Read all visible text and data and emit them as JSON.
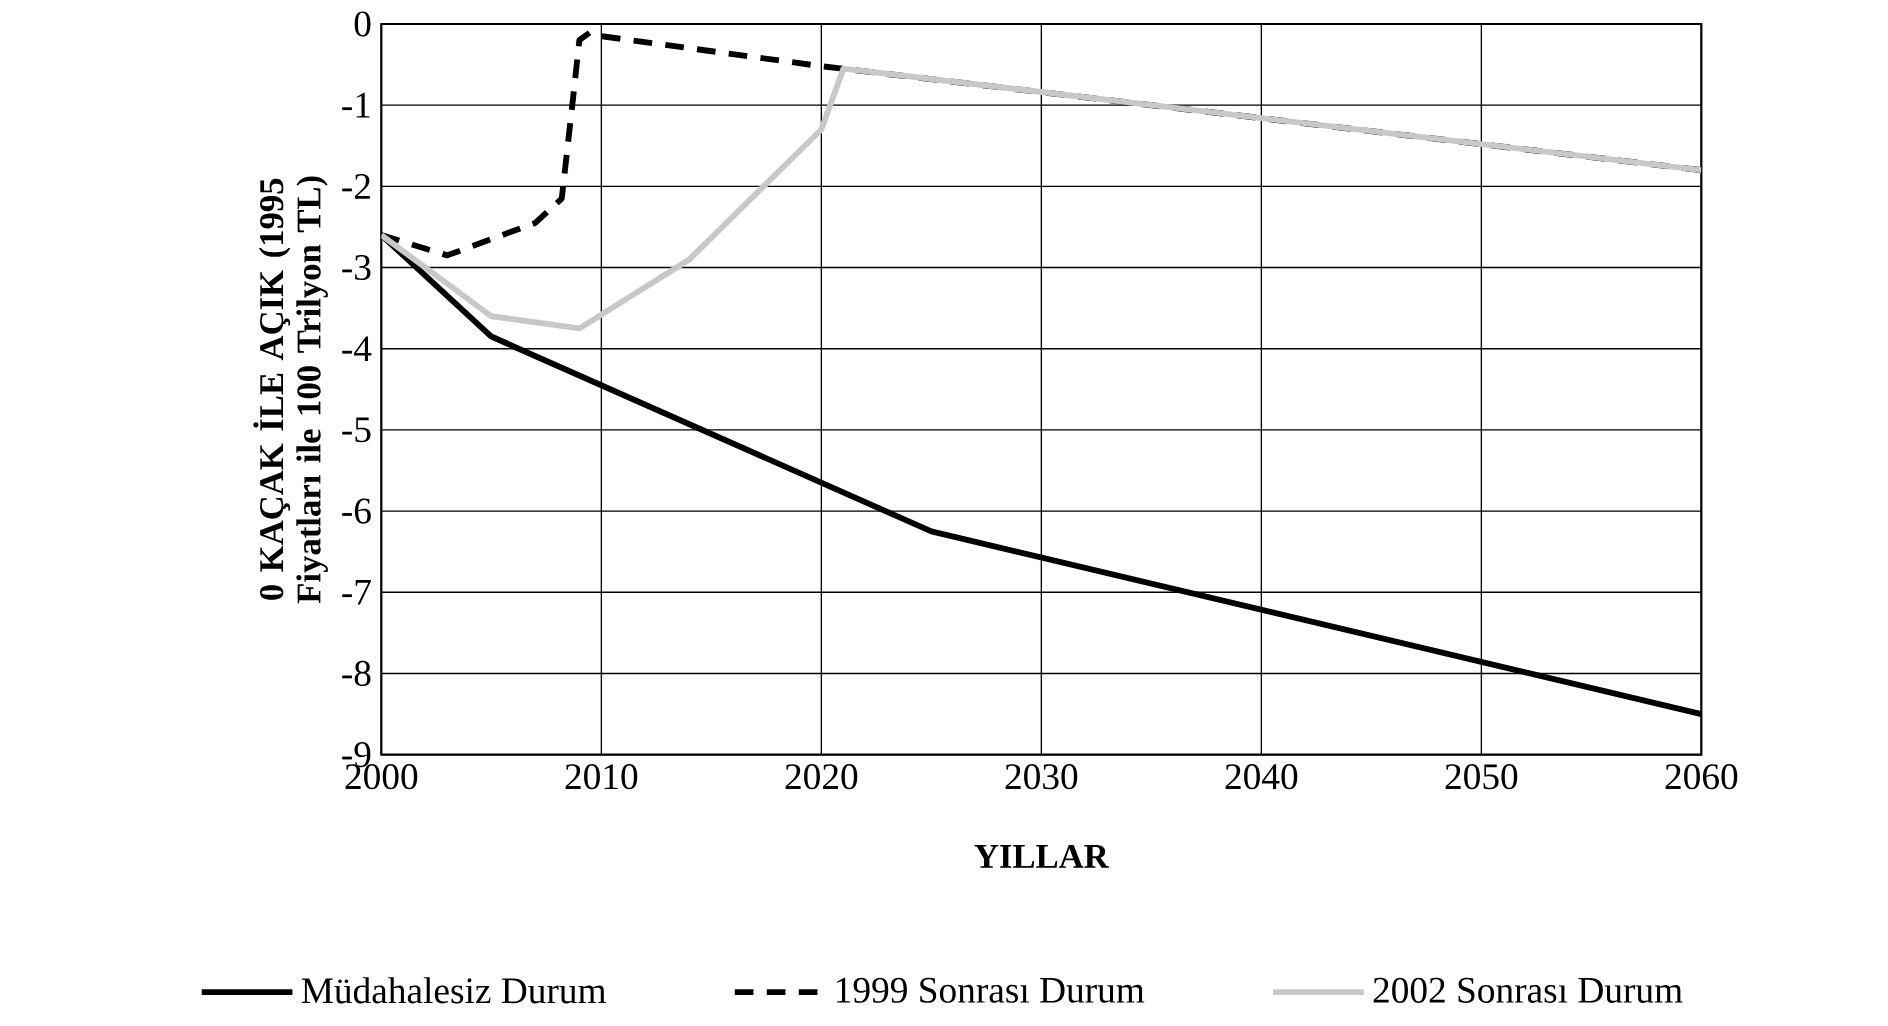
{
  "chart_data": {
    "type": "line",
    "xlabel": "YILLAR",
    "ylabel": "0 KAÇAK İLE AÇIK (1995 Fiyatları ile 100 Trilyon TL)",
    "xlim": [
      2000,
      2060
    ],
    "ylim": [
      -9,
      0
    ],
    "xticks": [
      2000,
      2010,
      2020,
      2030,
      2040,
      2050,
      2060
    ],
    "yticks": [
      0,
      -1,
      -2,
      -3,
      -4,
      -5,
      -6,
      -7,
      -8,
      -9
    ],
    "grid": true,
    "legend": "bottom",
    "marker": "none",
    "series": [
      {
        "name": "Müdahalesiz Durum",
        "color": "#000000",
        "line_style": "solid",
        "x": [
          2000,
          2005,
          2025,
          2060
        ],
        "values": [
          -2.6,
          -3.85,
          -6.25,
          -8.5
        ]
      },
      {
        "name": "1999 Sonrası Durum",
        "color": "#000000",
        "line_style": "dashed",
        "x": [
          2000,
          2003,
          2005,
          2007,
          2008.2,
          2008.7,
          2009,
          2009.5,
          2010,
          2020,
          2060
        ],
        "values": [
          -2.6,
          -2.85,
          -2.65,
          -2.45,
          -2.15,
          -0.95,
          -0.2,
          -0.1,
          -0.15,
          -0.52,
          -1.8
        ]
      },
      {
        "name": "2002 Sonrası Durum",
        "color": "#c8c8c8",
        "line_style": "solid",
        "x": [
          2000,
          2005,
          2009,
          2014,
          2020,
          2021,
          2060
        ],
        "values": [
          -2.6,
          -3.6,
          -3.75,
          -2.9,
          -1.3,
          -0.55,
          -1.8
        ]
      }
    ]
  }
}
